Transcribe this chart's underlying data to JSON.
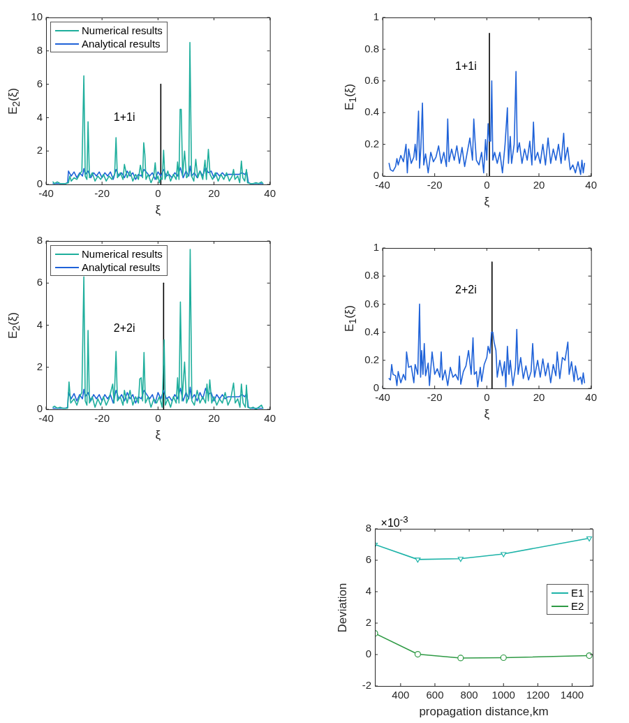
{
  "chart_data": [
    {
      "type": "line",
      "xlabel": "ξ",
      "ylabel": "E$_{2}$(ξ)",
      "xlim": [
        -40,
        40
      ],
      "xticks": [
        -40,
        -20,
        0,
        20,
        40
      ],
      "ylim": [
        0,
        10
      ],
      "yticks": [
        0,
        2,
        4,
        6,
        8,
        10
      ],
      "legend": "top left",
      "marker": "none",
      "annotations": [
        "1+1i"
      ],
      "series": [
        {
          "name": "Numerical results",
          "color": "#1eae9c",
          "x": [
            -37.5,
            -37,
            -36,
            -35,
            -34,
            -33,
            -32,
            -31.5,
            -31,
            -30,
            -29,
            -28,
            -27.2,
            -26.5,
            -26,
            -25.4,
            -25,
            -24.5,
            -23.5,
            -22.5,
            -21.5,
            -20.5,
            -19.5,
            -18.5,
            -17.5,
            -16.5,
            -15.5,
            -15,
            -14.5,
            -13.5,
            -12.5,
            -12,
            -11,
            -10,
            -9,
            -8,
            -7,
            -6.3,
            -5.5,
            -5.1,
            -4.7,
            -4.3,
            -3.5,
            -2.5,
            -1.5,
            -1,
            -0.5,
            0,
            0.5,
            1,
            1.5,
            2,
            2.5,
            3.5,
            4.5,
            5.5,
            6.5,
            7,
            7.5,
            7.9,
            8.3,
            8.8,
            9.5,
            10.2,
            11,
            11.4,
            12,
            12.8,
            13.5,
            14.2,
            15,
            16,
            16.8,
            17.3,
            18,
            18.6,
            19.5,
            20.5,
            21.5,
            22.5,
            23.5,
            24.5,
            25.5,
            26.5,
            27,
            27.5,
            28.5,
            29.2,
            29.8,
            30.3,
            31,
            31.6,
            32,
            33,
            34,
            35,
            36,
            37,
            37.5
          ],
          "values": [
            0.15,
            0.05,
            0.15,
            0.05,
            0.05,
            0.05,
            0.1,
            0.5,
            0.2,
            0.4,
            0.3,
            0.6,
            0.8,
            6.5,
            0.5,
            0.3,
            3.75,
            0.4,
            0.7,
            0.2,
            0.5,
            0.3,
            0.6,
            0.2,
            0.5,
            0.3,
            0.6,
            2.8,
            0.4,
            0.7,
            0.3,
            1.2,
            0.4,
            0.8,
            0.2,
            0.6,
            0.3,
            1.15,
            0.4,
            2.5,
            1.8,
            0.3,
            0.6,
            0.1,
            0.5,
            1.3,
            0.3,
            0.5,
            0.1,
            0.4,
            0.3,
            2.05,
            0.3,
            0.8,
            0.2,
            0.6,
            0.3,
            1.35,
            0.3,
            4.5,
            4.5,
            0.5,
            2.0,
            0.4,
            0.6,
            8.5,
            0.5,
            0.2,
            1.5,
            0.4,
            0.8,
            0.3,
            1.45,
            0.3,
            2.1,
            0.6,
            0.3,
            0.7,
            0.2,
            0.6,
            0.3,
            0.7,
            0.2,
            0.5,
            0.9,
            0.3,
            0.5,
            0.1,
            1.4,
            0.4,
            0.2,
            0.9,
            0.1,
            0.05,
            0.05,
            0.1,
            0.05,
            0.15,
            0.05
          ]
        },
        {
          "name": "Analytical results",
          "color": "#1f62d8",
          "x": [
            -37.5,
            -33,
            -32.3,
            -32,
            -31,
            -30,
            -29,
            -28,
            -27,
            -26.5,
            -26,
            -25,
            -24,
            -23,
            -22,
            -21,
            -20,
            -19,
            -18,
            -17,
            -16,
            -15,
            -14,
            -13,
            -12,
            -11,
            -10,
            -9,
            -8,
            -7,
            -6,
            -5,
            -4,
            -3,
            -2,
            -1,
            0,
            1,
            2,
            3,
            4,
            5,
            6,
            7,
            8,
            9,
            10,
            11,
            11.5,
            12,
            13,
            14,
            15,
            16,
            17,
            18,
            19,
            20,
            21,
            22,
            23,
            24,
            25,
            26,
            27,
            28,
            29,
            30,
            31,
            31.7,
            32.3,
            33,
            37.5
          ],
          "values": [
            0.05,
            0.05,
            0.1,
            0.8,
            0.5,
            0.75,
            0.4,
            0.7,
            0.5,
            0.95,
            0.6,
            0.8,
            0.4,
            0.7,
            0.5,
            0.75,
            0.4,
            0.7,
            0.5,
            0.75,
            0.3,
            0.9,
            0.5,
            0.7,
            0.4,
            0.8,
            0.5,
            0.7,
            0.3,
            0.6,
            0.5,
            0.9,
            0.7,
            0.5,
            0.7,
            0.3,
            0.75,
            0.5,
            0.9,
            0.5,
            0.6,
            0.4,
            0.7,
            0.5,
            1.0,
            0.4,
            0.8,
            0.5,
            1.1,
            0.5,
            0.7,
            0.4,
            0.8,
            0.5,
            1.0,
            0.7,
            0.8,
            0.4,
            0.7,
            0.5,
            0.7,
            0.5,
            0.6,
            0.6,
            0.6,
            0.6,
            0.6,
            0.7,
            0.6,
            0.75,
            0.1,
            0.05,
            0.05
          ]
        },
        {
          "type": "line",
          "color": "#000000",
          "x": [
            1,
            1
          ],
          "values": [
            0,
            6
          ]
        }
      ]
    },
    {
      "type": "line",
      "xlabel": "ξ",
      "ylabel": "E$_{1}$(ξ)",
      "xlim": [
        -40,
        40
      ],
      "xticks": [
        -40,
        -20,
        0,
        20,
        40
      ],
      "ylim": [
        0,
        1
      ],
      "yticks": [
        0,
        0.2,
        0.4,
        0.6,
        0.8,
        1
      ],
      "marker": "none",
      "annotations": [
        "1+1i"
      ],
      "series": [
        {
          "color": "#1f62d8",
          "x": [
            -37.5,
            -37,
            -36,
            -35,
            -34.5,
            -34,
            -33,
            -32,
            -31,
            -30.5,
            -30,
            -29,
            -28,
            -27.5,
            -27,
            -26.2,
            -25.8,
            -25.3,
            -24.7,
            -24.2,
            -23.5,
            -22.5,
            -21.5,
            -20.5,
            -19.5,
            -18.5,
            -17.5,
            -16.5,
            -15.5,
            -15,
            -14.5,
            -13.5,
            -12.5,
            -11.5,
            -10.5,
            -9.5,
            -8.5,
            -7.5,
            -6.5,
            -5.5,
            -5,
            -4.5,
            -4,
            -3,
            -2,
            -1.2,
            -0.5,
            0,
            0.5,
            1,
            1.5,
            1.9,
            2.3,
            3,
            4,
            5,
            6,
            7,
            7.9,
            8.3,
            9,
            9.5,
            10.5,
            11.2,
            11.7,
            12.5,
            13.5,
            14.5,
            15.5,
            16.5,
            17.3,
            17.9,
            18.5,
            19.5,
            20.5,
            21.5,
            22.5,
            23.5,
            24.5,
            25.5,
            26.5,
            27.5,
            28.5,
            29.5,
            30,
            31,
            32,
            33,
            34,
            35,
            36,
            36.5,
            37,
            37.5
          ],
          "values": [
            0.08,
            0.04,
            0.03,
            0.06,
            0.11,
            0.07,
            0.13,
            0.09,
            0.2,
            0.02,
            0.17,
            0.08,
            0.12,
            0.2,
            0.1,
            0.41,
            0.05,
            0.18,
            0.46,
            0.07,
            0.14,
            0.02,
            0.15,
            0.09,
            0.12,
            0.19,
            0.08,
            0.15,
            0.06,
            0.36,
            0.09,
            0.17,
            0.1,
            0.19,
            0.08,
            0.18,
            0.06,
            0.15,
            0.24,
            0.1,
            0.36,
            0.22,
            0.1,
            0.07,
            0.15,
            0.02,
            0.23,
            0.1,
            0.33,
            0.22,
            0.22,
            0.6,
            0.1,
            0.15,
            0.08,
            0.15,
            0.02,
            0.2,
            0.43,
            0.08,
            0.25,
            0.08,
            0.2,
            0.66,
            0.15,
            0.21,
            0.08,
            0.17,
            0.1,
            0.22,
            0.07,
            0.34,
            0.1,
            0.15,
            0.08,
            0.2,
            0.07,
            0.24,
            0.08,
            0.17,
            0.1,
            0.2,
            0.08,
            0.27,
            0.1,
            0.18,
            0.04,
            0.07,
            0.02,
            0.09,
            0.01,
            0.1,
            0.02,
            0.08
          ]
        },
        {
          "type": "line",
          "color": "#000000",
          "x": [
            1,
            1
          ],
          "values": [
            0,
            0.9
          ]
        }
      ]
    },
    {
      "type": "line",
      "xlabel": "ξ",
      "ylabel": "E$_{2}$(ξ)",
      "xlim": [
        -40,
        40
      ],
      "xticks": [
        -40,
        -20,
        0,
        20,
        40
      ],
      "ylim": [
        0,
        8
      ],
      "yticks": [
        0,
        2,
        4,
        6,
        8
      ],
      "legend": "top left",
      "marker": "none",
      "annotations": [
        "2+2i"
      ],
      "series": [
        {
          "name": "Numerical results",
          "color": "#1eae9c",
          "x": [
            -37.5,
            -37,
            -36,
            -35,
            -34,
            -33,
            -32.3,
            -31.8,
            -31.2,
            -30,
            -29,
            -28,
            -27.2,
            -26.5,
            -26,
            -25.4,
            -25,
            -24.5,
            -23.5,
            -22.5,
            -21.5,
            -20.5,
            -19.5,
            -18.5,
            -17.5,
            -16.2,
            -15.7,
            -15,
            -14.5,
            -13.5,
            -12.5,
            -12,
            -11,
            -10,
            -9,
            -8,
            -7,
            -6.5,
            -6,
            -5.5,
            -5,
            -4.5,
            -3.5,
            -2.5,
            -1.5,
            -0.5,
            0.5,
            1.5,
            2.2,
            2.6,
            3.5,
            4.5,
            5.5,
            6.5,
            7,
            7.5,
            8,
            8.6,
            9.5,
            10.2,
            11,
            11.5,
            12.1,
            13,
            14,
            15,
            16,
            17,
            17.5,
            18,
            18.5,
            19.2,
            20,
            21,
            22,
            23,
            24,
            25,
            26,
            27,
            27.6,
            28.5,
            29.3,
            29.8,
            30.4,
            31.2,
            31.6,
            32.1,
            33,
            34,
            35,
            36,
            37,
            37.5
          ],
          "values": [
            0.1,
            0.15,
            0.05,
            0.1,
            0.05,
            0.05,
            0.05,
            1.3,
            0.3,
            0.5,
            0.2,
            0.6,
            0.8,
            6.3,
            0.4,
            0.2,
            3.75,
            0.3,
            0.6,
            0.1,
            0.5,
            0.2,
            0.6,
            0.2,
            0.5,
            1.2,
            0.3,
            2.75,
            0.4,
            0.6,
            0.2,
            0.9,
            0.3,
            0.9,
            0.2,
            0.6,
            0.3,
            1.45,
            1.5,
            0.4,
            2.7,
            0.3,
            0.6,
            0.1,
            0.5,
            0.3,
            0.6,
            0.1,
            3.3,
            0.2,
            0.5,
            0.1,
            0.6,
            0.3,
            1.5,
            0.3,
            5.1,
            0.4,
            2.25,
            0.3,
            0.6,
            7.6,
            0.4,
            0.2,
            0.9,
            0.3,
            0.6,
            0.3,
            1.2,
            0.4,
            1.4,
            0.3,
            0.6,
            0.2,
            0.5,
            0.3,
            0.8,
            0.2,
            0.5,
            1.25,
            0.3,
            0.5,
            0.1,
            1.2,
            0.3,
            0.1,
            1.15,
            0.1,
            0.05,
            0.1,
            0,
            0.1,
            0.2,
            0.05
          ]
        },
        {
          "name": "Analytical results",
          "color": "#1f62d8",
          "x": [
            -37.5,
            -33,
            -32.3,
            -32,
            -31,
            -30,
            -29,
            -28,
            -27,
            -26.5,
            -26,
            -25,
            -24,
            -23,
            -22,
            -21,
            -20,
            -19,
            -18,
            -17,
            -16,
            -15,
            -14,
            -13,
            -12,
            -11,
            -10,
            -9,
            -8,
            -7,
            -6,
            -5,
            -4,
            -3,
            -2,
            -1,
            0,
            1,
            2,
            3,
            4,
            5,
            6,
            7,
            8,
            9,
            10,
            11,
            11.5,
            12,
            13,
            14,
            15,
            16,
            17,
            18,
            19,
            20,
            21,
            22,
            23,
            24,
            25,
            26,
            27,
            28,
            29,
            30,
            31,
            31.7,
            32.3,
            33,
            37.5
          ],
          "values": [
            0.05,
            0.05,
            0.1,
            0.8,
            0.5,
            0.75,
            0.4,
            0.7,
            0.5,
            0.95,
            0.6,
            0.8,
            0.4,
            0.7,
            0.5,
            0.7,
            0.4,
            0.7,
            0.5,
            0.7,
            0.3,
            0.9,
            0.5,
            0.7,
            0.4,
            0.8,
            0.5,
            0.7,
            0.3,
            0.6,
            0.5,
            0.9,
            0.7,
            0.5,
            0.7,
            0.3,
            0.8,
            0.5,
            0.9,
            0.5,
            0.6,
            0.4,
            0.7,
            0.5,
            1.0,
            0.4,
            0.8,
            0.5,
            1.05,
            0.5,
            0.7,
            0.4,
            0.8,
            0.5,
            1.0,
            0.7,
            0.8,
            0.4,
            0.7,
            0.5,
            0.7,
            0.5,
            0.6,
            0.6,
            0.6,
            0.6,
            0.6,
            0.7,
            0.6,
            0.75,
            0.1,
            0.05,
            0.05
          ]
        },
        {
          "type": "line",
          "color": "#000000",
          "x": [
            2,
            2
          ],
          "values": [
            0,
            6
          ]
        }
      ]
    },
    {
      "type": "line",
      "xlabel": "ξ",
      "ylabel": "E$_{1}$(ξ)",
      "xlim": [
        -40,
        40
      ],
      "xticks": [
        -40,
        -20,
        0,
        20,
        40
      ],
      "ylim": [
        0,
        1
      ],
      "yticks": [
        0,
        0.2,
        0.4,
        0.6,
        0.8,
        1
      ],
      "marker": "none",
      "annotations": [
        "2+2i"
      ],
      "series": [
        {
          "color": "#1f62d8",
          "x": [
            -37.5,
            -37,
            -36.5,
            -36,
            -35,
            -34.5,
            -34,
            -33,
            -32,
            -31.2,
            -30.8,
            -30,
            -29,
            -28,
            -27.5,
            -26.5,
            -25.8,
            -25.4,
            -25,
            -24.5,
            -24,
            -23.5,
            -22.5,
            -22,
            -21,
            -20,
            -19,
            -18,
            -17.5,
            -17,
            -16,
            -15,
            -14,
            -13,
            -12,
            -11,
            -10.5,
            -10,
            -9,
            -8,
            -7,
            -6,
            -5.3,
            -4.8,
            -4,
            -3.5,
            -2.5,
            -2,
            -1,
            0,
            0.5,
            1.2,
            1.8,
            2.3,
            2.8,
            3.5,
            4,
            5,
            6,
            6.8,
            7.3,
            7.9,
            8.5,
            9,
            10,
            11,
            11.5,
            12,
            13,
            14,
            15,
            16,
            17,
            17.6,
            18.3,
            19.5,
            20.5,
            21.5,
            22.5,
            23.5,
            24.5,
            25.5,
            26.5,
            27,
            28,
            29,
            30,
            31.1,
            31.6,
            32.5,
            33.5,
            34,
            35,
            36,
            36.5,
            37,
            37.5
          ],
          "values": [
            0.07,
            0.06,
            0.17,
            0.1,
            0.09,
            0.02,
            0.12,
            0.04,
            0.1,
            0.06,
            0.26,
            0.15,
            0.16,
            0.04,
            0.17,
            0.1,
            0.6,
            0.08,
            0.27,
            0.1,
            0.32,
            0.09,
            0.18,
            0.02,
            0.26,
            0.1,
            0.14,
            0.08,
            0.26,
            0.06,
            0.13,
            0.02,
            0.15,
            0.08,
            0.1,
            0.06,
            0.23,
            0.03,
            0.12,
            0.16,
            0.27,
            0.1,
            0.36,
            0.1,
            0.12,
            0.01,
            0.15,
            0.05,
            0.17,
            0.22,
            0.3,
            0.25,
            0.4,
            0.4,
            0.33,
            0.27,
            0.08,
            0.2,
            0.09,
            0.19,
            0.01,
            0.3,
            0.1,
            0.2,
            0.02,
            0.15,
            0.42,
            0.1,
            0.22,
            0.07,
            0.16,
            0.06,
            0.12,
            0.32,
            0.08,
            0.2,
            0.08,
            0.21,
            0.09,
            0.18,
            0.04,
            0.17,
            0.09,
            0.26,
            0.07,
            0.22,
            0.2,
            0.33,
            0.1,
            0.19,
            0.05,
            0.16,
            0.06,
            0.08,
            0.03,
            0.11,
            0.04
          ]
        },
        {
          "type": "line",
          "color": "#000000",
          "x": [
            2,
            2
          ],
          "values": [
            0,
            0.9
          ]
        }
      ]
    },
    {
      "type": "line",
      "xlabel": "propagation distance,km",
      "ylabel": "Deviation",
      "xlim": [
        250,
        1520
      ],
      "xticks": [
        400,
        600,
        800,
        1000,
        1200,
        1400
      ],
      "ylim": [
        -2,
        8
      ],
      "yticks": [
        -2,
        0,
        2,
        4,
        6,
        8
      ],
      "legend": "right",
      "annotations": [
        "×10$^{-3}$"
      ],
      "x": [
        250,
        500,
        750,
        1000,
        1500
      ],
      "series": [
        {
          "name": "E1",
          "color": "#1db3a8",
          "marker": "triangle",
          "values": [
            7.0,
            6.05,
            6.1,
            6.4,
            7.4
          ]
        },
        {
          "name": "E2",
          "color": "#2e9a44",
          "marker": "circle",
          "values": [
            1.35,
            0.02,
            -0.22,
            -0.2,
            -0.07
          ]
        }
      ]
    }
  ]
}
